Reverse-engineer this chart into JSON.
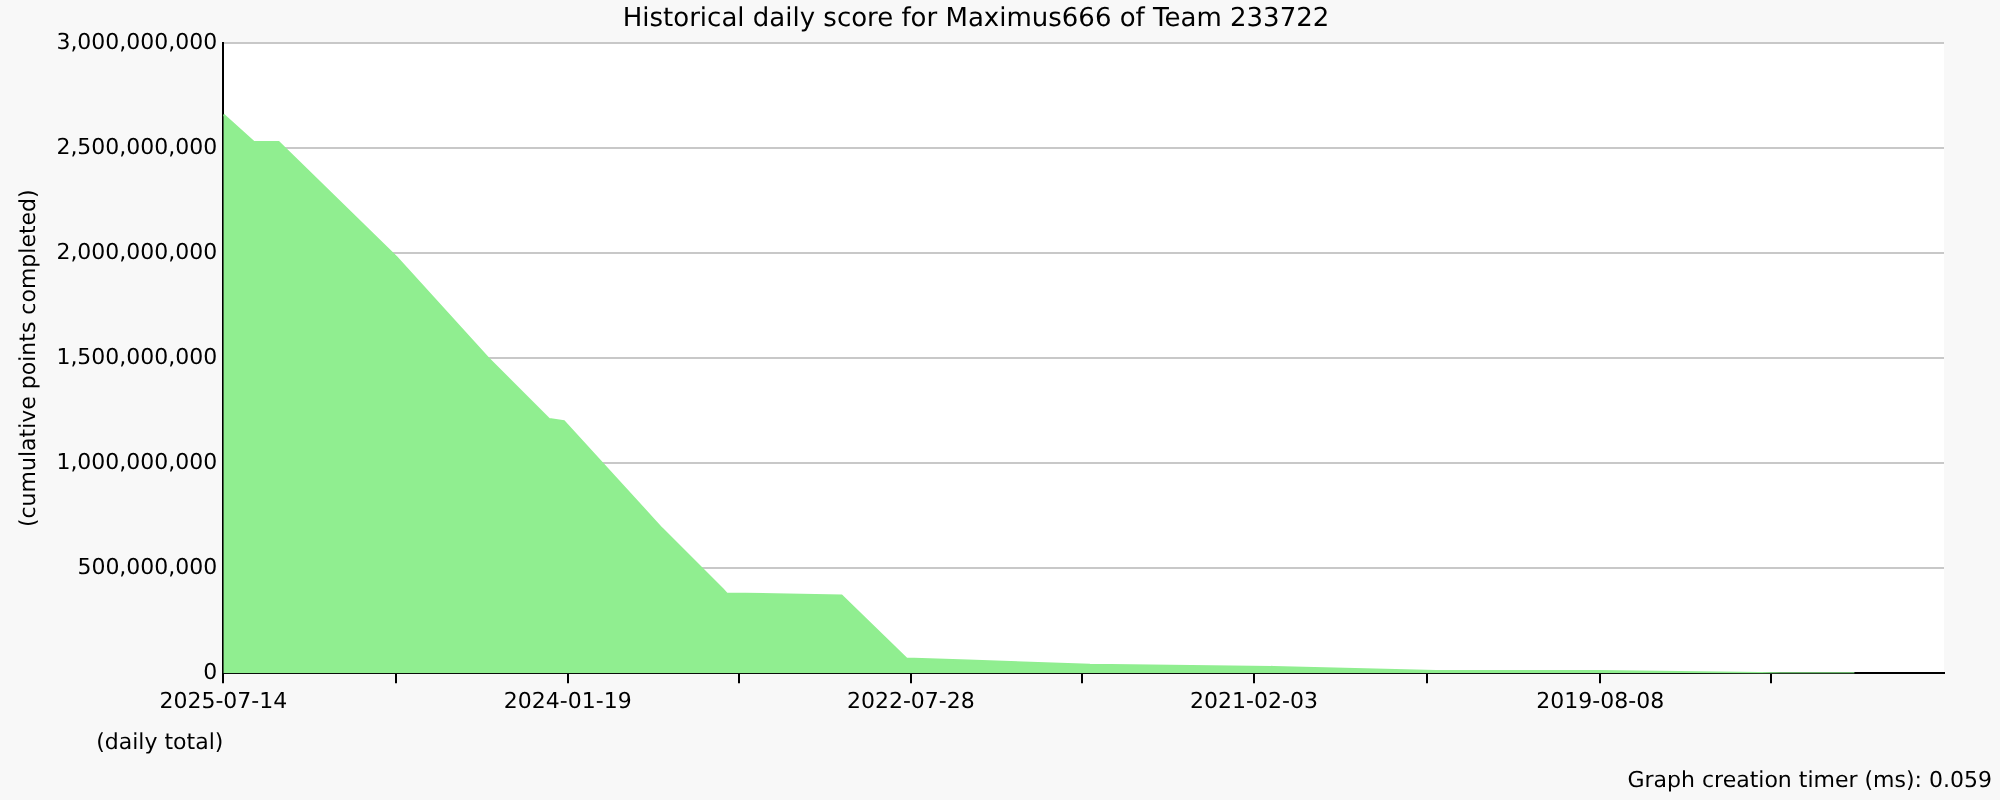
{
  "chart_data": {
    "type": "area",
    "title": "Historical daily score for Maximus666 of Team 233722",
    "ylabel": "(cumulative points completed)",
    "xlabel": "(daily total)",
    "annotations": [
      "Graph creation timer (ms): 0.059"
    ],
    "x": [
      "2025-07-14",
      "2025-05-27",
      "2025-04-18",
      "2024-10-14",
      "2024-05-23",
      "2024-02-17",
      "2024-01-25",
      "2023-08-24",
      "2023-05-20",
      "2023-05-14",
      "2022-11-14",
      "2022-08-04",
      "2022-04-29",
      "2021-10-19",
      "2021-01-03",
      "2020-04-22",
      "2019-08-10",
      "2018-10-25",
      "2018-07-04"
    ],
    "series": [
      {
        "color": "#90ee90",
        "values": [
          2660000000,
          2530000000,
          2530000000,
          1980000000,
          1500000000,
          1210000000,
          1200000000,
          690000000,
          400000000,
          380000000,
          370000000,
          70000000,
          60000000,
          40000000,
          30000000,
          10000000,
          10000000,
          0,
          0
        ]
      }
    ],
    "xlim": [
      "2025-07-14",
      "2018-02-13"
    ],
    "xticks": [
      "2025-07-14",
      {
        "value": "2024-10-16",
        "label": null
      },
      "2024-01-19",
      {
        "value": "2023-04-24",
        "label": null
      },
      "2022-07-28",
      {
        "value": "2021-10-31",
        "label": null
      },
      "2021-02-03",
      {
        "value": "2020-05-07",
        "label": null
      },
      "2019-08-08",
      {
        "value": "2018-11-12",
        "label": null
      }
    ],
    "ylim": [
      0,
      3000000000
    ],
    "yticks": [
      0,
      {
        "value": 500000000,
        "label": "500,000,000"
      },
      {
        "value": 1000000000,
        "label": "1,000,000,000"
      },
      {
        "value": 1500000000,
        "label": "1,500,000,000"
      },
      {
        "value": 2000000000,
        "label": "2,000,000,000"
      },
      {
        "value": 2500000000,
        "label": "2,500,000,000"
      },
      {
        "value": 3000000000,
        "label": "3,000,000,000"
      }
    ],
    "grid": "y",
    "legend": false
  }
}
